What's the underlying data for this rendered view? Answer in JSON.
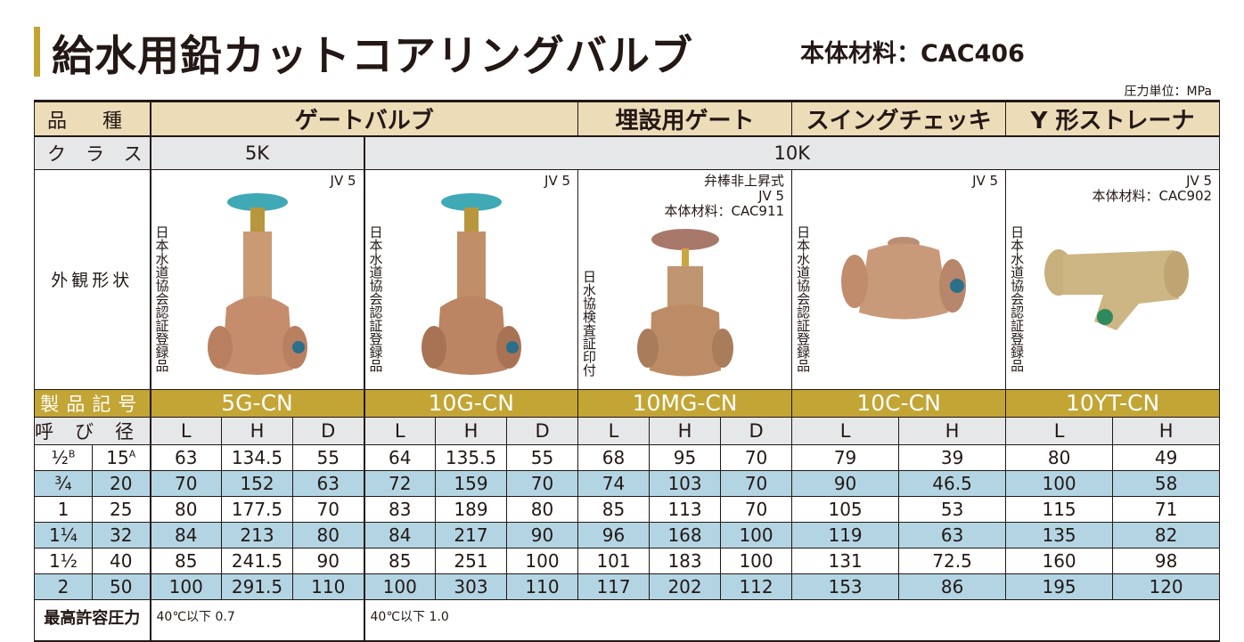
{
  "title": "給水用鉛カットコアリングバルブ",
  "material": "本体材料：CAC406",
  "unit": "圧力単位：MPa",
  "labels": {
    "kind": "品種",
    "class": "クラス",
    "appearance": "外観形状",
    "product": "製品記号",
    "size": "呼び径",
    "pressure": "最高許容圧力"
  },
  "kinds": [
    "ゲートバルブ",
    "埋設用ゲート",
    "スイングチェッキ",
    "Y 形ストレーナ"
  ],
  "classes": [
    "5K",
    "10K"
  ],
  "products": [
    {
      "code": "5G-CN",
      "jv": "JV 5",
      "note": "",
      "cert": "日本水道協会認証登録品",
      "icon": "gate-valve-teal-handwheel"
    },
    {
      "code": "10G-CN",
      "jv": "JV 5",
      "note": "",
      "cert": "日本水道協会認証登録品",
      "icon": "gate-valve-teal-handwheel"
    },
    {
      "code": "10MG-CN",
      "jv": "JV 5",
      "note": "弁棒非上昇式",
      "note2": "本体材料：CAC911",
      "cert": "日水協検査証印付",
      "icon": "buried-gate-valve"
    },
    {
      "code": "10C-CN",
      "jv": "JV 5",
      "note": "",
      "cert": "日本水道協会認証登録品",
      "icon": "swing-check-valve"
    },
    {
      "code": "10YT-CN",
      "jv": "JV 5",
      "note2": "本体材料：CAC902",
      "cert": "日本水道協会認証登録品",
      "icon": "y-strainer"
    }
  ],
  "dim_headers": [
    "L",
    "H",
    "D",
    "L",
    "H",
    "D",
    "L",
    "H",
    "D",
    "L",
    "H",
    "L",
    "H"
  ],
  "rows": [
    {
      "b": "½",
      "a": "15",
      "vals": [
        "63",
        "134.5",
        "55",
        "64",
        "135.5",
        "55",
        "68",
        "95",
        "70",
        "79",
        "39",
        "80",
        "49"
      ]
    },
    {
      "b": "¾",
      "a": "20",
      "vals": [
        "70",
        "152",
        "63",
        "72",
        "159",
        "70",
        "74",
        "103",
        "70",
        "90",
        "46.5",
        "100",
        "58"
      ]
    },
    {
      "b": "1",
      "a": "25",
      "vals": [
        "80",
        "177.5",
        "70",
        "83",
        "189",
        "80",
        "85",
        "113",
        "70",
        "105",
        "53",
        "115",
        "71"
      ]
    },
    {
      "b": "1¼",
      "a": "32",
      "vals": [
        "84",
        "213",
        "80",
        "84",
        "217",
        "90",
        "96",
        "168",
        "100",
        "119",
        "63",
        "135",
        "82"
      ]
    },
    {
      "b": "1½",
      "a": "40",
      "vals": [
        "85",
        "241.5",
        "90",
        "85",
        "251",
        "100",
        "101",
        "183",
        "100",
        "131",
        "72.5",
        "160",
        "98"
      ]
    },
    {
      "b": "2",
      "a": "50",
      "vals": [
        "100",
        "291.5",
        "110",
        "100",
        "303",
        "110",
        "117",
        "202",
        "112",
        "153",
        "86",
        "195",
        "120"
      ]
    }
  ],
  "sup_b": "B",
  "sup_a": "A",
  "pressure": [
    "40℃以下 0.7",
    "40℃以下 1.0"
  ],
  "colors": {
    "accent": "#c3a535",
    "header": "#ecdcb8",
    "class_row": "#e6e7e9",
    "stripe": "#b3d5e3"
  }
}
